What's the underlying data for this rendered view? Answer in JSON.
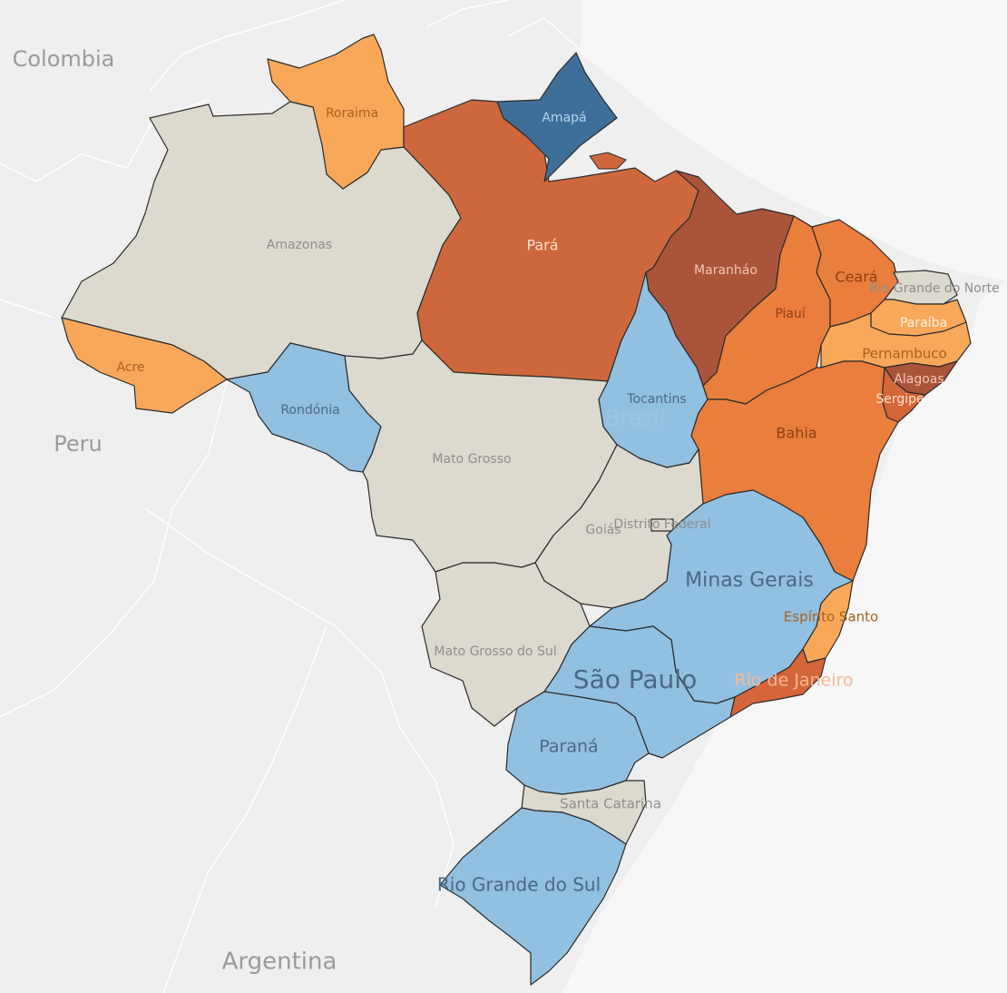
{
  "map": {
    "countries": {
      "colombia": "Colombia",
      "peru": "Peru",
      "argentina": "Argentina",
      "brazil": "Brazil"
    },
    "states": [
      {
        "id": "roraima",
        "name": "Roraima",
        "fill": "#f9a85a",
        "label_color": "#a8611e"
      },
      {
        "id": "amapa",
        "name": "Amapá",
        "fill": "#3f6f99",
        "label_color": "#b5d3ec"
      },
      {
        "id": "amazonas",
        "name": "Amazonas",
        "fill": "#dcd9ce",
        "label_color": "#8e8e8e"
      },
      {
        "id": "para",
        "name": "Pará",
        "fill": "#ce683c",
        "label_color": "#fde2cf"
      },
      {
        "id": "maranhao",
        "name": "Maranháo",
        "fill": "#ab543c",
        "label_color": "#f6c7b3"
      },
      {
        "id": "ceara",
        "name": "Ceará",
        "fill": "#ea7e3c",
        "label_color": "#8f3e12"
      },
      {
        "id": "piaui",
        "name": "Piauí",
        "fill": "#ea7e3c",
        "label_color": "#8f3e12"
      },
      {
        "id": "rio-grande-do-norte",
        "name": "Rio Grande do Norte",
        "fill": "#dcd9ce",
        "label_color": "#8e8e8e"
      },
      {
        "id": "paraiba",
        "name": "Paraíba",
        "fill": "#f9a85a",
        "label_color": "#fff2e0"
      },
      {
        "id": "pernambuco",
        "name": "Pernambuco",
        "fill": "#f9a85a",
        "label_color": "#a8611e"
      },
      {
        "id": "alagoas",
        "name": "Alagoas",
        "fill": "#ab543c",
        "label_color": "#f6c7b3"
      },
      {
        "id": "sergipe",
        "name": "Sergipe",
        "fill": "#d4663a",
        "label_color": "#fde2cf"
      },
      {
        "id": "acre",
        "name": "Acre",
        "fill": "#f9a85a",
        "label_color": "#a8611e"
      },
      {
        "id": "rondonia",
        "name": "Rondónia",
        "fill": "#92c0e0",
        "label_color": "#4a6883"
      },
      {
        "id": "tocantins",
        "name": "Tocantins",
        "fill": "#92c0e0",
        "label_color": "#4a6883"
      },
      {
        "id": "mato-grosso",
        "name": "Mato Grosso",
        "fill": "#dcd9ce",
        "label_color": "#8e8e8e"
      },
      {
        "id": "bahia",
        "name": "Bahia",
        "fill": "#ea7e3c",
        "label_color": "#8f3e12"
      },
      {
        "id": "goias",
        "name": "Goiás",
        "fill": "#dcd9ce",
        "label_color": "#8e8e8e"
      },
      {
        "id": "distrito-federal",
        "name": "Distrito Federal",
        "fill": "#dcd9ce",
        "label_color": "#8e8e8e"
      },
      {
        "id": "minas-gerais",
        "name": "Minas Gerais",
        "fill": "#92c0e0",
        "label_color": "#4a6883"
      },
      {
        "id": "espirito-santo",
        "name": "Espírito Santo",
        "fill": "#f9a85a",
        "label_color": "#a8611e"
      },
      {
        "id": "mato-grosso-do-sul",
        "name": "Mato Grosso do Sul",
        "fill": "#dcd9ce",
        "label_color": "#8e8e8e"
      },
      {
        "id": "sao-paulo",
        "name": "São Paulo",
        "fill": "#92c0e0",
        "label_color": "#4a6883"
      },
      {
        "id": "rio-de-janeiro",
        "name": "Rio de Janeiro",
        "fill": "#d4663a",
        "label_color": "#f7b895"
      },
      {
        "id": "parana",
        "name": "Paraná",
        "fill": "#92c0e0",
        "label_color": "#4a6883"
      },
      {
        "id": "santa-catarina",
        "name": "Santa Catarina",
        "fill": "#dcd9ce",
        "label_color": "#8e8e8e"
      },
      {
        "id": "rio-grande-do-sul",
        "name": "Rio Grande do Sul",
        "fill": "#92c0e0",
        "label_color": "#4a6883"
      }
    ]
  }
}
